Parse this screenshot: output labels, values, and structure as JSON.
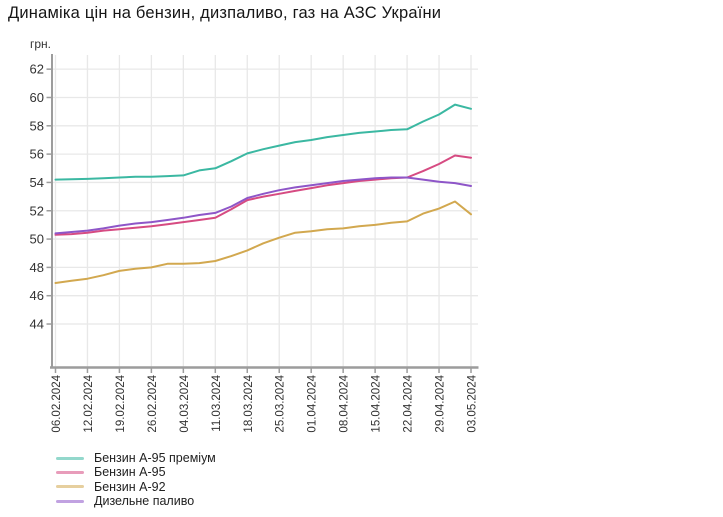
{
  "title": "Динаміка цін на бензин, дизпаливо, газ на АЗС України",
  "chart_data": {
    "type": "line",
    "title": "Динаміка цін на бензин, дизпаливо, газ на АЗС України",
    "ylabel": "грн.",
    "xlabel": "",
    "ylim": [
      41,
      63
    ],
    "y_ticks": [
      44,
      46,
      48,
      50,
      52,
      54,
      56,
      58,
      60,
      62
    ],
    "grid": true,
    "legend_position": "bottom-left",
    "colors": {
      "grid": "#e8e8e8",
      "axis": "#9c9c9c",
      "tick_label": "#333333"
    },
    "categories": [
      "06.02.2024",
      "12.02.2024",
      "19.02.2024",
      "26.02.2024",
      "04.03.2024",
      "11.03.2024",
      "18.03.2024",
      "25.03.2024",
      "01.04.2024",
      "08.04.2024",
      "15.04.2024",
      "22.04.2024",
      "29.04.2024",
      "03.05.2024"
    ],
    "x": [
      0,
      0.5,
      1,
      1.5,
      2,
      2.5,
      3,
      3.5,
      4,
      4.5,
      5,
      5.5,
      6,
      6.5,
      7,
      7.5,
      8,
      8.5,
      9,
      9.5,
      10,
      10.5,
      11,
      11.5,
      12,
      12.5,
      13
    ],
    "series": [
      {
        "id": "benzyn-a95-premium",
        "name": "Бензин А-95 преміум",
        "color": "#3bb8a2",
        "values": [
          54.2,
          54.22,
          54.25,
          54.3,
          54.35,
          54.4,
          54.4,
          54.45,
          54.5,
          54.85,
          55.0,
          55.5,
          56.05,
          56.35,
          56.6,
          56.85,
          57.0,
          57.2,
          57.35,
          57.5,
          57.6,
          57.7,
          57.75,
          58.3,
          58.8,
          59.5,
          59.2
        ]
      },
      {
        "id": "benzyn-a95",
        "name": "Бензин А-95",
        "color": "#d64b82",
        "values": [
          50.3,
          50.35,
          50.45,
          50.6,
          50.7,
          50.8,
          50.9,
          51.05,
          51.2,
          51.35,
          51.5,
          52.1,
          52.75,
          53.0,
          53.2,
          53.4,
          53.6,
          53.8,
          53.95,
          54.1,
          54.2,
          54.3,
          54.35,
          54.8,
          55.3,
          55.9,
          55.75
        ]
      },
      {
        "id": "benzyn-a92",
        "name": "Бензин А-92",
        "color": "#d2a84f",
        "values": [
          46.9,
          47.05,
          47.2,
          47.45,
          47.75,
          47.9,
          48.0,
          48.25,
          48.25,
          48.3,
          48.45,
          48.8,
          49.2,
          49.7,
          50.1,
          50.45,
          50.55,
          50.7,
          50.75,
          50.9,
          51.0,
          51.15,
          51.25,
          51.8,
          52.15,
          52.65,
          51.75
        ]
      },
      {
        "id": "dyzelne-palyvo",
        "name": "Дизельне паливо",
        "color": "#8e56c8",
        "values": [
          50.4,
          50.5,
          50.6,
          50.75,
          50.95,
          51.1,
          51.2,
          51.35,
          51.5,
          51.7,
          51.85,
          52.3,
          52.9,
          53.2,
          53.45,
          53.65,
          53.8,
          53.95,
          54.1,
          54.2,
          54.3,
          54.35,
          54.35,
          54.2,
          54.05,
          53.95,
          53.75
        ]
      }
    ]
  }
}
